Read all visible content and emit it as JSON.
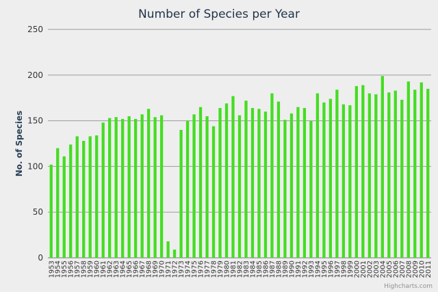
{
  "chart_data": {
    "type": "bar",
    "title": "Number of Species per Year",
    "xlabel": "",
    "ylabel": "No. of Species",
    "ylim": [
      0,
      250
    ],
    "yticks": [
      0,
      50,
      100,
      150,
      200,
      250
    ],
    "grid": true,
    "legend": false,
    "categories": [
      "1953",
      "1954",
      "1955",
      "1956",
      "1957",
      "1958",
      "1959",
      "1960",
      "1961",
      "1962",
      "1963",
      "1964",
      "1965",
      "1966",
      "1967",
      "1968",
      "1969",
      "1970",
      "1971",
      "1972",
      "1973",
      "1974",
      "1975",
      "1976",
      "1977",
      "1978",
      "1979",
      "1980",
      "1981",
      "1982",
      "1983",
      "1984",
      "1985",
      "1986",
      "1987",
      "1988",
      "1989",
      "1990",
      "1991",
      "1992",
      "1993",
      "1994",
      "1995",
      "1996",
      "1997",
      "1998",
      "1999",
      "2000",
      "2001",
      "2002",
      "2003",
      "2004",
      "2005",
      "2006",
      "2007",
      "2008",
      "2009",
      "2010",
      "2011"
    ],
    "values": [
      102,
      120,
      111,
      124,
      133,
      128,
      133,
      134,
      148,
      153,
      154,
      152,
      155,
      152,
      157,
      163,
      154,
      156,
      18,
      9,
      140,
      150,
      157,
      165,
      155,
      144,
      164,
      169,
      177,
      156,
      172,
      164,
      163,
      160,
      180,
      171,
      151,
      158,
      165,
      164,
      150,
      180,
      170,
      174,
      184,
      168,
      167,
      188,
      189,
      180,
      179,
      199,
      181,
      183,
      173,
      193,
      184,
      192,
      185
    ],
    "bar_color": "#44dd22",
    "grid_color": "#9a9a9a",
    "credit": "Highcharts.com"
  }
}
